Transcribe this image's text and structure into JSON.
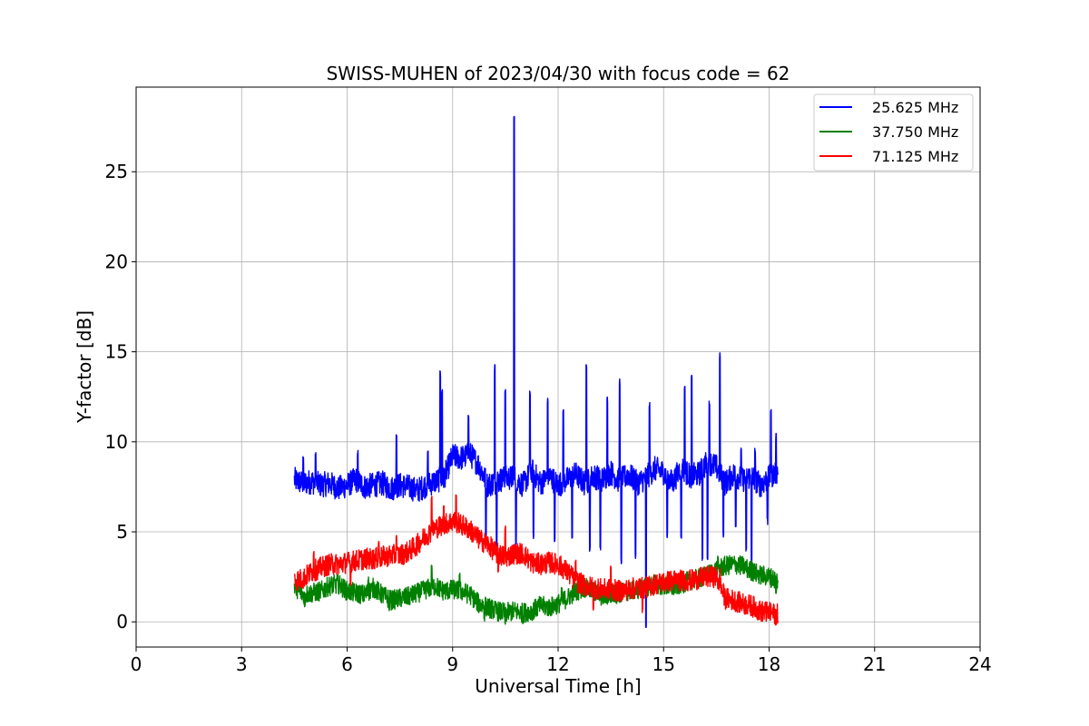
{
  "chart_data": {
    "type": "line",
    "title": "SWISS-MUHEN of 2023/04/30 with focus code = 62",
    "xlabel": "Universal Time [h]",
    "ylabel": "Y-factor [dB]",
    "xlim": [
      0,
      24
    ],
    "ylim": [
      -1.4,
      29.7
    ],
    "xticks": [
      0,
      3,
      6,
      9,
      12,
      15,
      18,
      21,
      24
    ],
    "yticks": [
      0,
      5,
      10,
      15,
      20,
      25
    ],
    "grid": true,
    "legend_position": "top-right",
    "series": [
      {
        "name": "25.625 MHz",
        "color": "#0000ff",
        "x": [
          4.5,
          4.75,
          5.0,
          5.25,
          5.5,
          5.75,
          6.0,
          6.25,
          6.5,
          6.75,
          7.0,
          7.25,
          7.5,
          7.75,
          8.0,
          8.25,
          8.5,
          8.75,
          9.0,
          9.25,
          9.5,
          9.75,
          10.0,
          10.25,
          10.5,
          10.75,
          11.0,
          11.25,
          11.5,
          11.75,
          12.0,
          12.25,
          12.5,
          12.75,
          13.0,
          13.25,
          13.5,
          13.75,
          14.0,
          14.25,
          14.5,
          14.75,
          15.0,
          15.25,
          15.5,
          15.75,
          16.0,
          16.25,
          16.5,
          16.75,
          17.0,
          17.25,
          17.5,
          17.75,
          18.0,
          18.25
        ],
        "y": [
          7.9,
          7.7,
          7.8,
          7.6,
          7.7,
          7.4,
          7.6,
          7.9,
          7.5,
          7.6,
          7.7,
          7.4,
          7.6,
          7.5,
          7.3,
          7.6,
          7.8,
          8.0,
          9.2,
          9.1,
          9.3,
          8.7,
          7.6,
          7.8,
          8.0,
          8.0,
          7.6,
          8.4,
          7.7,
          8.1,
          7.6,
          7.9,
          8.2,
          7.7,
          8.1,
          7.9,
          8.3,
          7.8,
          8.2,
          7.7,
          8.0,
          8.5,
          8.3,
          7.7,
          8.6,
          8.1,
          8.2,
          8.9,
          8.6,
          7.7,
          8.2,
          7.9,
          8.1,
          7.6,
          8.0,
          8.4
        ],
        "spikes_up": [
          [
            4.75,
            9.3
          ],
          [
            5.1,
            9.4
          ],
          [
            6.3,
            9.6
          ],
          [
            7.4,
            10.5
          ],
          [
            8.3,
            9.8
          ],
          [
            8.65,
            14.0
          ],
          [
            8.7,
            13.0
          ],
          [
            9.45,
            11.5
          ],
          [
            10.2,
            14.3
          ],
          [
            10.5,
            13.0
          ],
          [
            10.75,
            28.3
          ],
          [
            10.8,
            27.6
          ],
          [
            11.2,
            13.0
          ],
          [
            11.7,
            12.5
          ],
          [
            12.15,
            12.0
          ],
          [
            12.8,
            14.3
          ],
          [
            13.2,
            14.0
          ],
          [
            13.4,
            12.5
          ],
          [
            13.75,
            13.5
          ],
          [
            14.2,
            11.5
          ],
          [
            14.6,
            12.3
          ],
          [
            15.1,
            13.0
          ],
          [
            15.6,
            13.3
          ],
          [
            15.8,
            14.0
          ],
          [
            16.3,
            12.3
          ],
          [
            16.6,
            15.0
          ],
          [
            17.2,
            9.8
          ],
          [
            17.6,
            9.8
          ],
          [
            18.05,
            11.8
          ],
          [
            18.2,
            10.5
          ]
        ],
        "spikes_down": [
          [
            9.95,
            4.8
          ],
          [
            10.25,
            4.2
          ],
          [
            10.8,
            4.6
          ],
          [
            11.3,
            5.0
          ],
          [
            11.9,
            4.8
          ],
          [
            12.4,
            5.0
          ],
          [
            12.9,
            4.3
          ],
          [
            13.2,
            4.3
          ],
          [
            13.8,
            3.6
          ],
          [
            14.2,
            3.8
          ],
          [
            14.5,
            0.0
          ],
          [
            15.1,
            5.0
          ],
          [
            15.5,
            5.0
          ],
          [
            16.1,
            3.6
          ],
          [
            16.25,
            3.6
          ],
          [
            16.7,
            5.0
          ],
          [
            17.05,
            5.5
          ],
          [
            17.35,
            4.3
          ],
          [
            17.5,
            3.3
          ],
          [
            17.95,
            5.8
          ]
        ]
      },
      {
        "name": "37.750 MHz",
        "color": "#008000",
        "x": [
          4.5,
          4.75,
          5.0,
          5.25,
          5.5,
          5.75,
          6.0,
          6.25,
          6.5,
          6.75,
          7.0,
          7.25,
          7.5,
          7.75,
          8.0,
          8.25,
          8.5,
          8.75,
          9.0,
          9.25,
          9.5,
          9.75,
          10.0,
          10.25,
          10.5,
          10.75,
          11.0,
          11.25,
          11.5,
          11.75,
          12.0,
          12.25,
          12.5,
          12.75,
          13.0,
          13.25,
          13.5,
          13.75,
          14.0,
          14.25,
          14.5,
          14.75,
          15.0,
          15.25,
          15.5,
          15.75,
          16.0,
          16.25,
          16.5,
          16.75,
          17.0,
          17.25,
          17.5,
          17.75,
          18.0,
          18.25
        ],
        "y": [
          2.0,
          1.5,
          1.6,
          1.7,
          2.0,
          2.1,
          1.7,
          1.6,
          1.5,
          1.9,
          1.5,
          1.2,
          1.3,
          1.4,
          1.6,
          1.8,
          2.0,
          1.7,
          1.8,
          1.7,
          1.5,
          1.0,
          0.8,
          0.6,
          0.5,
          0.6,
          0.5,
          0.6,
          0.9,
          0.8,
          1.0,
          1.3,
          1.7,
          1.9,
          1.7,
          1.4,
          1.5,
          1.6,
          1.7,
          1.8,
          1.9,
          2.1,
          2.0,
          1.9,
          2.1,
          2.3,
          2.4,
          2.6,
          2.9,
          3.1,
          3.2,
          3.1,
          2.8,
          2.6,
          2.5,
          2.3
        ],
        "spikes_up": [
          [
            4.6,
            2.7
          ],
          [
            5.7,
            2.6
          ],
          [
            6.6,
            2.5
          ],
          [
            8.4,
            3.2
          ],
          [
            9.2,
            2.8
          ],
          [
            12.1,
            2.2
          ],
          [
            12.6,
            2.3
          ],
          [
            16.55,
            3.9
          ],
          [
            17.5,
            3.4
          ]
        ],
        "spikes_down": [
          [
            4.8,
            1.0
          ],
          [
            7.2,
            0.8
          ],
          [
            9.9,
            0.4
          ],
          [
            10.5,
            0.1
          ],
          [
            11.0,
            0.1
          ],
          [
            18.2,
            1.9
          ]
        ]
      },
      {
        "name": "71.125 MHz",
        "color": "#ff0000",
        "x": [
          4.5,
          4.75,
          5.0,
          5.25,
          5.5,
          5.75,
          6.0,
          6.25,
          6.5,
          6.75,
          7.0,
          7.25,
          7.5,
          7.75,
          8.0,
          8.25,
          8.5,
          8.75,
          9.0,
          9.25,
          9.5,
          9.75,
          10.0,
          10.25,
          10.5,
          10.75,
          11.0,
          11.25,
          11.5,
          11.75,
          12.0,
          12.25,
          12.5,
          12.75,
          13.0,
          13.25,
          13.5,
          13.75,
          14.0,
          14.25,
          14.5,
          14.75,
          15.0,
          15.25,
          15.5,
          15.75,
          16.0,
          16.25,
          16.5,
          16.75,
          17.0,
          17.25,
          17.5,
          17.75,
          18.0,
          18.25
        ],
        "y": [
          2.3,
          2.4,
          2.8,
          3.0,
          3.2,
          3.2,
          3.3,
          3.4,
          3.5,
          3.5,
          3.6,
          3.7,
          3.7,
          3.9,
          4.3,
          4.8,
          5.2,
          5.4,
          5.6,
          5.4,
          5.1,
          4.6,
          4.3,
          3.8,
          3.6,
          3.8,
          3.8,
          3.3,
          3.2,
          3.3,
          3.2,
          2.8,
          2.3,
          2.0,
          1.9,
          1.8,
          1.8,
          1.7,
          1.8,
          1.9,
          1.9,
          2.1,
          2.2,
          2.3,
          2.3,
          2.3,
          2.4,
          2.5,
          2.5,
          1.3,
          1.2,
          1.0,
          0.9,
          0.6,
          0.5,
          0.4
        ],
        "spikes_up": [
          [
            5.05,
            4.0
          ],
          [
            6.9,
            4.6
          ],
          [
            7.4,
            4.8
          ],
          [
            8.4,
            7.0
          ],
          [
            8.75,
            6.5
          ],
          [
            9.1,
            7.3
          ],
          [
            10.5,
            5.5
          ],
          [
            12.5,
            3.5
          ],
          [
            13.5,
            3.3
          ],
          [
            16.6,
            3.0
          ],
          [
            17.9,
            1.2
          ]
        ],
        "spikes_down": [
          [
            6.1,
            2.3
          ],
          [
            10.3,
            3.0
          ],
          [
            13.0,
            1.0
          ],
          [
            14.4,
            0.9
          ],
          [
            18.2,
            0.1
          ]
        ]
      }
    ]
  }
}
